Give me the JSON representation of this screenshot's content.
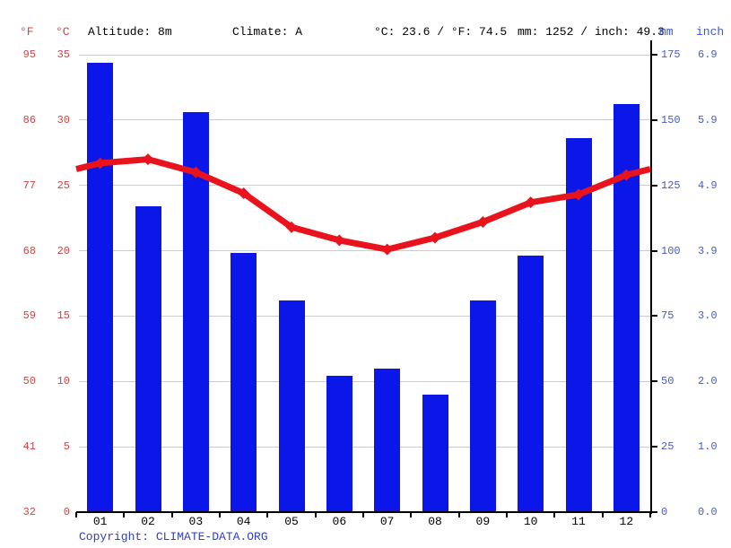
{
  "header": {
    "fahrenheit_label": "°F",
    "celsius_label": "°C",
    "altitude": "Altitude: 8m",
    "climate": "Climate: A",
    "temperature_summary": "°C: 23.6 / °F: 74.5",
    "precipitation_summary": "mm: 1252 / inch: 49.3",
    "mm_label": "mm",
    "inch_label": "inch"
  },
  "footer": {
    "copyright_label": "Copyright:",
    "copyright_link": "CLIMATE-DATA.ORG"
  },
  "chart_data": {
    "type": "bar+line climate chart (climograph)",
    "categories": [
      "01",
      "02",
      "03",
      "04",
      "05",
      "06",
      "07",
      "08",
      "09",
      "10",
      "11",
      "12"
    ],
    "series": [
      {
        "name": "Precipitation",
        "type": "bar",
        "unit": "mm",
        "values": [
          172,
          117,
          153,
          99,
          81,
          52,
          55,
          45,
          81,
          98,
          143,
          156
        ],
        "color": "#0b16e8"
      },
      {
        "name": "Temperature",
        "type": "line",
        "unit": "°C",
        "values": [
          26.7,
          27.0,
          26.0,
          24.4,
          21.8,
          20.8,
          20.1,
          21.0,
          22.2,
          23.7,
          24.3,
          25.8
        ],
        "color": "#e8131d"
      }
    ],
    "axes": {
      "left_fahrenheit": [
        "95",
        "86",
        "77",
        "68",
        "59",
        "50",
        "41",
        "32"
      ],
      "left_celsius": [
        "35",
        "30",
        "25",
        "20",
        "15",
        "10",
        "5",
        "0"
      ],
      "right_mm": [
        "175",
        "150",
        "125",
        "100",
        "75",
        "50",
        "25",
        "0"
      ],
      "right_inch": [
        "6.9",
        "5.9",
        "4.9",
        "3.9",
        "3.0",
        "2.0",
        "1.0",
        "0.0"
      ]
    },
    "ylim_celsius": [
      0,
      35
    ],
    "ylim_mm": [
      0,
      175
    ],
    "grid": true,
    "legend": "none",
    "annotations": {
      "altitude": "Altitude: 8m",
      "climate_zone": "Climate: A",
      "mean_temp_c": 23.6,
      "mean_temp_f": 74.5,
      "annual_precip_mm": 1252,
      "annual_precip_inch": 49.3
    }
  },
  "colors": {
    "bar_blue": "#0b16e8",
    "line_red": "#e8131d",
    "red_labels": "#cf4444",
    "blue_labels": "#4a5abf",
    "header_blue": "#3a57d1",
    "copyright_blue": "#2f3fbe",
    "gridline": "#cccccc",
    "axis_black": "#000000"
  }
}
